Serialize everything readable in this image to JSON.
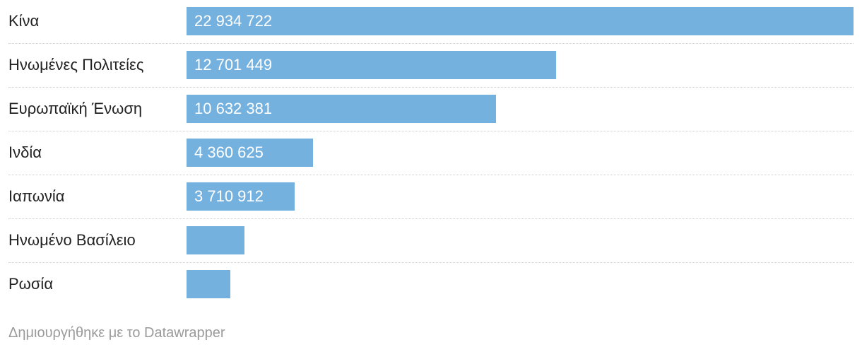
{
  "chart_data": {
    "type": "bar",
    "orientation": "horizontal",
    "categories": [
      "Κίνα",
      "Ηνωμένες Πολιτείες",
      "Ευρωπαϊκή Ένωση",
      "Ινδία",
      "Ιαπωνία",
      "Ηνωμένο Βασίλειο",
      "Ρωσία"
    ],
    "values": [
      22934722,
      12701449,
      10632381,
      4360625,
      3710912,
      2000000,
      1500000
    ],
    "labels": [
      "22 934 722",
      "12 701 449",
      "10 632 381",
      "4 360 625",
      "3 710 912",
      "",
      ""
    ],
    "bar_color": "#74b1df",
    "grid": false
  },
  "footer": {
    "credit": "Δημιουργήθηκε με το Datawrapper"
  }
}
